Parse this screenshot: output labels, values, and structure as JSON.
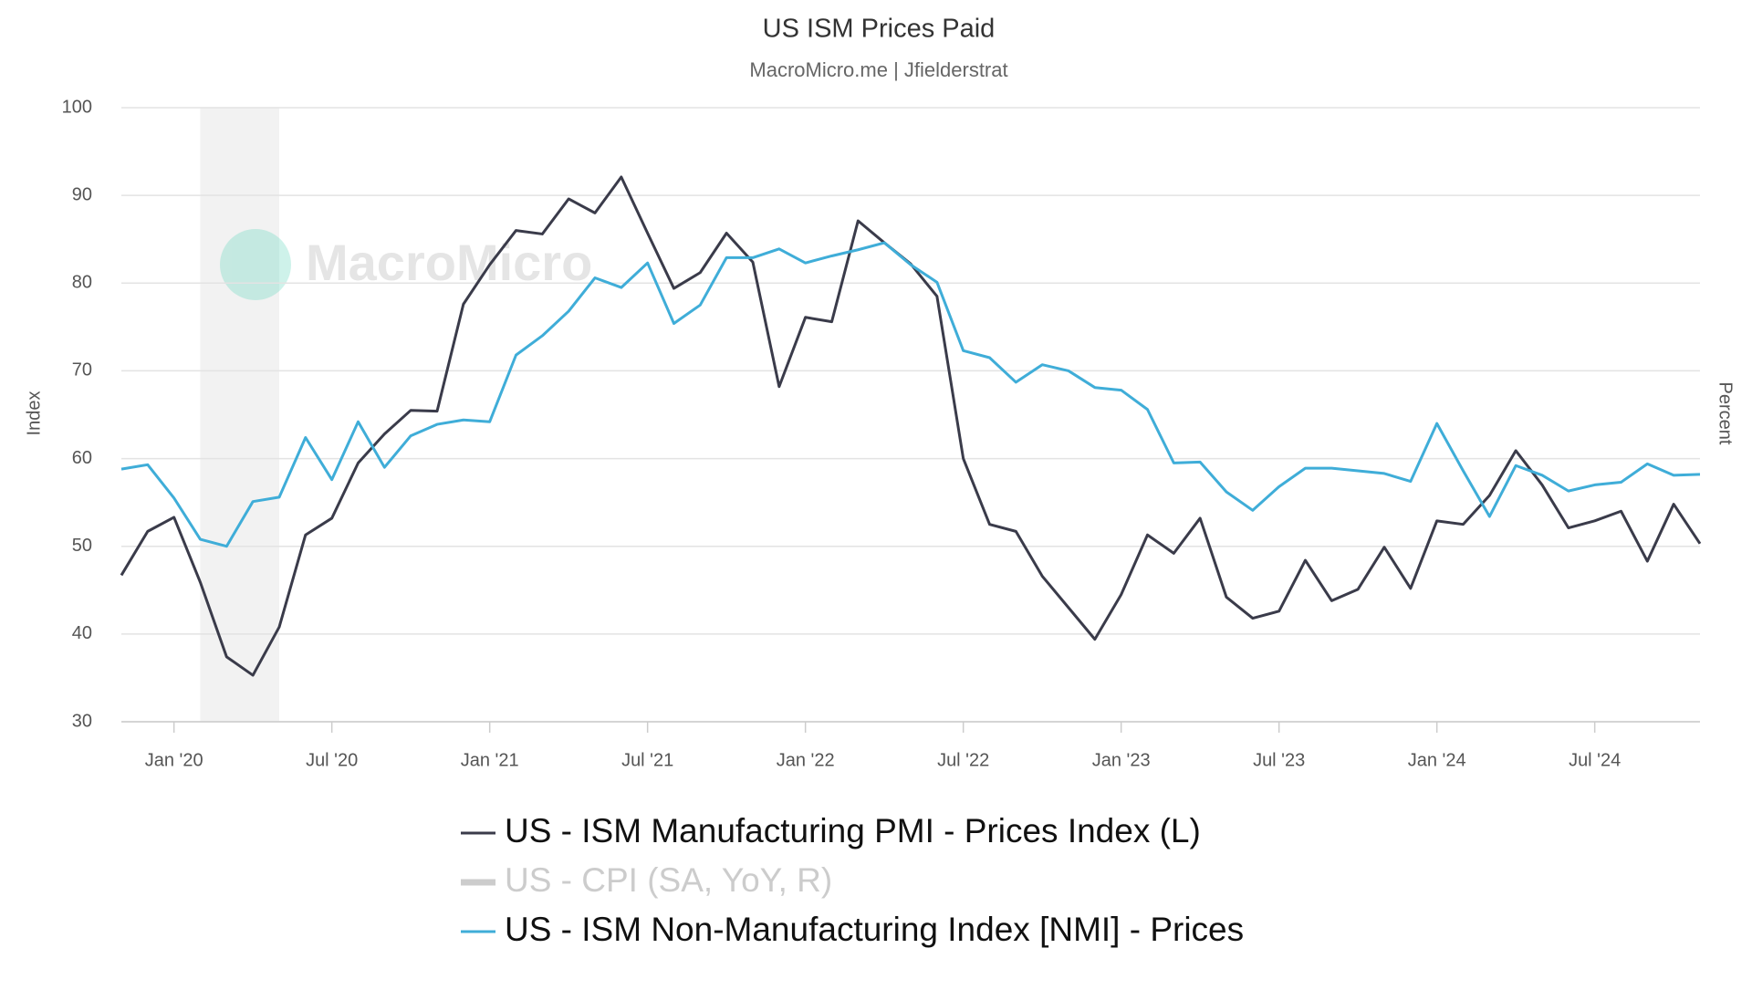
{
  "chart_data": {
    "type": "line",
    "title": "US ISM Prices Paid",
    "subtitle": "MacroMicro.me | Jfielderstrat",
    "watermark": "MacroMicro",
    "y_label": "Index",
    "y2_label": "Percent",
    "x": [
      "2019-11",
      "2019-12",
      "2020-01",
      "2020-02",
      "2020-03",
      "2020-04",
      "2020-05",
      "2020-06",
      "2020-07",
      "2020-08",
      "2020-09",
      "2020-10",
      "2020-11",
      "2020-12",
      "2021-01",
      "2021-02",
      "2021-03",
      "2021-04",
      "2021-05",
      "2021-06",
      "2021-07",
      "2021-08",
      "2021-09",
      "2021-10",
      "2021-11",
      "2021-12",
      "2022-01",
      "2022-02",
      "2022-03",
      "2022-04",
      "2022-05",
      "2022-06",
      "2022-07",
      "2022-08",
      "2022-09",
      "2022-10",
      "2022-11",
      "2022-12",
      "2023-01",
      "2023-02",
      "2023-03",
      "2023-04",
      "2023-05",
      "2023-06",
      "2023-07",
      "2023-08",
      "2023-09",
      "2023-10",
      "2023-11",
      "2023-12",
      "2024-01",
      "2024-02",
      "2024-03",
      "2024-04",
      "2024-05",
      "2024-06",
      "2024-07",
      "2024-08",
      "2024-09",
      "2024-10",
      "2024-11"
    ],
    "xlim": [
      "2019-11",
      "2024-11"
    ],
    "xticks": [
      {
        "value": "2020-01",
        "label": "Jan '20"
      },
      {
        "value": "2020-07",
        "label": "Jul '20"
      },
      {
        "value": "2021-01",
        "label": "Jan '21"
      },
      {
        "value": "2021-07",
        "label": "Jul '21"
      },
      {
        "value": "2022-01",
        "label": "Jan '22"
      },
      {
        "value": "2022-07",
        "label": "Jul '22"
      },
      {
        "value": "2023-01",
        "label": "Jan '23"
      },
      {
        "value": "2023-07",
        "label": "Jul '23"
      },
      {
        "value": "2024-01",
        "label": "Jan '24"
      },
      {
        "value": "2024-07",
        "label": "Jul '24"
      }
    ],
    "ylim": [
      30,
      100
    ],
    "yticks": [
      30,
      40,
      50,
      60,
      70,
      80,
      90,
      100
    ],
    "grid": true,
    "shade": [
      "2020-02",
      "2020-04"
    ],
    "series": [
      {
        "name": "US - ISM Manufacturing PMI - Prices Index (L)",
        "color": "#3a3b4a",
        "values": [
          46.7,
          51.7,
          53.3,
          45.9,
          37.4,
          35.3,
          40.8,
          51.3,
          53.2,
          59.5,
          62.8,
          65.5,
          65.4,
          77.6,
          82.1,
          86.0,
          85.6,
          89.6,
          88.0,
          92.1,
          85.7,
          79.4,
          81.2,
          85.7,
          82.4,
          68.2,
          76.1,
          75.6,
          87.1,
          84.6,
          82.2,
          78.5,
          60.0,
          52.5,
          51.7,
          46.6,
          43.0,
          39.4,
          44.5,
          51.3,
          49.2,
          53.2,
          44.2,
          41.8,
          42.6,
          48.4,
          43.8,
          45.1,
          49.9,
          45.2,
          52.9,
          52.5,
          55.8,
          60.9,
          57.0,
          52.1,
          52.9,
          54.0,
          48.3,
          54.8,
          50.3
        ]
      },
      {
        "name": "US - CPI (SA, YoY, R)",
        "color": "#cccccc",
        "hidden": true
      },
      {
        "name": "US - ISM Non-Manufacturing Index [NMI] - Prices",
        "color": "#3fadd8",
        "values": [
          58.8,
          59.3,
          55.5,
          50.8,
          50.0,
          55.1,
          55.6,
          62.4,
          57.6,
          64.2,
          59.0,
          62.6,
          63.9,
          64.4,
          64.2,
          71.8,
          74.0,
          76.8,
          80.6,
          79.5,
          82.3,
          75.4,
          77.5,
          82.9,
          82.9,
          83.9,
          82.3,
          83.1,
          83.8,
          84.6,
          82.1,
          80.1,
          72.3,
          71.5,
          68.7,
          70.7,
          70.0,
          68.1,
          67.8,
          65.6,
          59.5,
          59.6,
          56.2,
          54.1,
          56.8,
          58.9,
          58.9,
          58.6,
          58.3,
          57.4,
          64.0,
          58.6,
          53.4,
          59.2,
          58.1,
          56.3,
          57.0,
          57.3,
          59.4,
          58.1,
          58.2
        ]
      }
    ]
  }
}
